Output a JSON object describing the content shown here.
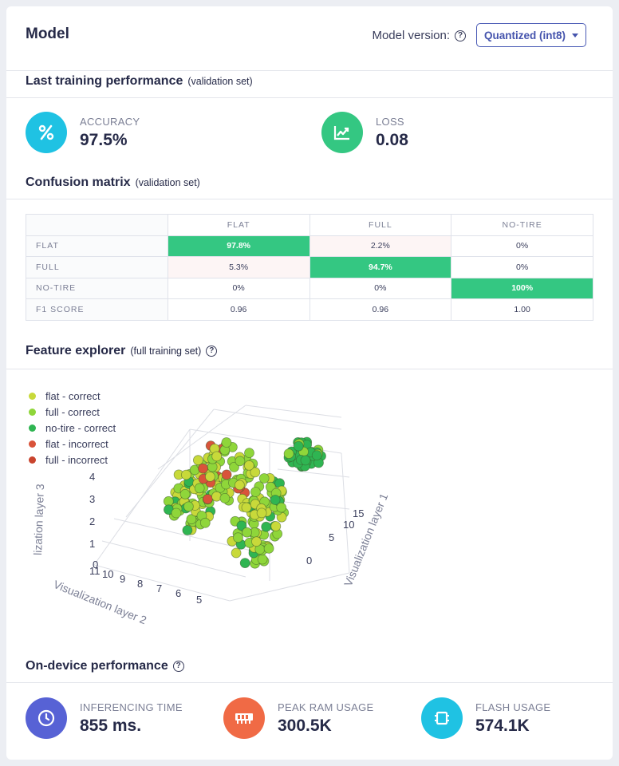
{
  "header": {
    "title": "Model",
    "version_label": "Model version:",
    "version_value": "Quantized (int8)"
  },
  "training": {
    "title": "Last training performance",
    "subtitle": "(validation set)",
    "accuracy": {
      "label": "ACCURACY",
      "value": "97.5%",
      "icon": "percent-icon"
    },
    "loss": {
      "label": "LOSS",
      "value": "0.08",
      "icon": "chart-line-icon"
    }
  },
  "confusion": {
    "title": "Confusion matrix",
    "subtitle": "(validation set)",
    "columns": [
      "FLAT",
      "FULL",
      "NO-TIRE"
    ],
    "rows": [
      {
        "label": "FLAT",
        "cells": [
          "97.8%",
          "2.2%",
          "0%"
        ]
      },
      {
        "label": "FULL",
        "cells": [
          "5.3%",
          "94.7%",
          "0%"
        ]
      },
      {
        "label": "NO-TIRE",
        "cells": [
          "0%",
          "0%",
          "100%"
        ]
      },
      {
        "label": "F1 SCORE",
        "cells": [
          "0.96",
          "0.96",
          "1.00"
        ]
      }
    ]
  },
  "explorer": {
    "title": "Feature explorer",
    "subtitle": "(full training set)",
    "legend": [
      {
        "label": "flat - correct",
        "color": "#c8d93a"
      },
      {
        "label": "full - correct",
        "color": "#8fd63a"
      },
      {
        "label": "no-tire - correct",
        "color": "#2fb552"
      },
      {
        "label": "flat - incorrect",
        "color": "#d9533a"
      },
      {
        "label": "full - incorrect",
        "color": "#c9442e"
      }
    ],
    "axes": {
      "z_title": "lization layer 3",
      "x_title": "Visualization layer 2",
      "y_title": "Visualization layer 1",
      "z_ticks": [
        "4",
        "3",
        "2",
        "1",
        "0"
      ],
      "x_ticks": [
        "11",
        "10",
        "9",
        "8",
        "7",
        "6",
        "5"
      ],
      "y_ticks": [
        "15",
        "10",
        "5",
        "0"
      ]
    }
  },
  "device": {
    "title": "On-device performance",
    "inferencing": {
      "label": "INFERENCING TIME",
      "value": "855 ms.",
      "color": "#5762d5"
    },
    "ram": {
      "label": "PEAK RAM USAGE",
      "value": "300.5K",
      "color": "#f06a45"
    },
    "flash": {
      "label": "FLASH USAGE",
      "value": "574.1K",
      "color": "#1fc2e3"
    }
  }
}
